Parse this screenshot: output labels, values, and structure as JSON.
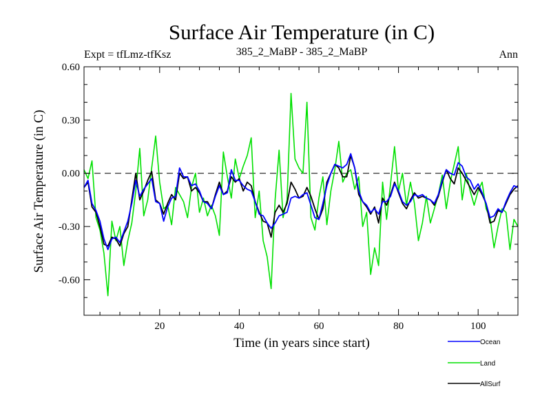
{
  "chart_data": {
    "type": "line",
    "title": "Surface Air Temperature (in C)",
    "subtitle_left": "Expt = tfLmz-tfKsz",
    "subtitle_center": "385_2_MaBP - 385_2_MaBP",
    "subtitle_right": "Ann",
    "xlabel": "Time (in years since start)",
    "ylabel": "Surface Air Temperature (in C)",
    "xlim": [
      1,
      110
    ],
    "ylim": [
      -0.8,
      0.6
    ],
    "xticks": [
      20,
      40,
      60,
      80,
      100
    ],
    "xtick_labels": [
      "20",
      "40",
      "60",
      "80",
      "100"
    ],
    "yticks": [
      0.6,
      0.3,
      0.0,
      -0.3,
      -0.6
    ],
    "ytick_labels": [
      "0.60",
      "0.30",
      "0.00",
      "-0.30",
      "-0.60"
    ],
    "zero_line": 0.0,
    "x": [
      1,
      2,
      3,
      4,
      5,
      6,
      7,
      8,
      9,
      10,
      11,
      12,
      13,
      14,
      15,
      16,
      17,
      18,
      19,
      20,
      21,
      22,
      23,
      24,
      25,
      26,
      27,
      28,
      29,
      30,
      31,
      32,
      33,
      34,
      35,
      36,
      37,
      38,
      39,
      40,
      41,
      42,
      43,
      44,
      45,
      46,
      47,
      48,
      49,
      50,
      51,
      52,
      53,
      54,
      55,
      56,
      57,
      58,
      59,
      60,
      61,
      62,
      63,
      64,
      65,
      66,
      67,
      68,
      69,
      70,
      71,
      72,
      73,
      74,
      75,
      76,
      77,
      78,
      79,
      80,
      81,
      82,
      83,
      84,
      85,
      86,
      87,
      88,
      89,
      90,
      91,
      92,
      93,
      94,
      95,
      96,
      97,
      98,
      99,
      100,
      101,
      102,
      103,
      104,
      105,
      106,
      107,
      108,
      109,
      110
    ],
    "series": [
      {
        "name": "Land",
        "color": "#00e000",
        "values": [
          0.02,
          -0.03,
          0.07,
          -0.25,
          -0.32,
          -0.45,
          -0.69,
          -0.27,
          -0.38,
          -0.3,
          -0.52,
          -0.38,
          -0.28,
          -0.1,
          0.14,
          -0.24,
          -0.15,
          0.03,
          0.21,
          -0.05,
          -0.2,
          -0.18,
          -0.29,
          -0.08,
          -0.12,
          -0.16,
          -0.25,
          -0.08,
          0.0,
          -0.22,
          -0.14,
          -0.24,
          -0.18,
          -0.24,
          -0.35,
          0.12,
          -0.02,
          -0.14,
          0.08,
          -0.03,
          0.04,
          0.1,
          0.2,
          -0.25,
          -0.1,
          -0.38,
          -0.47,
          -0.65,
          -0.15,
          0.13,
          -0.25,
          -0.15,
          0.45,
          0.08,
          0.03,
          0.0,
          0.4,
          -0.25,
          -0.32,
          -0.14,
          -0.02,
          -0.29,
          -0.1,
          0.02,
          0.18,
          -0.05,
          0.0,
          0.02,
          -0.09,
          -0.02,
          -0.3,
          -0.22,
          -0.57,
          -0.42,
          -0.52,
          -0.05,
          -0.26,
          -0.06,
          0.15,
          -0.1,
          0.0,
          -0.18,
          -0.05,
          -0.17,
          -0.38,
          -0.28,
          -0.13,
          -0.28,
          -0.2,
          -0.12,
          -0.01,
          -0.2,
          -0.05,
          0.05,
          0.15,
          -0.15,
          0.0,
          -0.1,
          -0.18,
          -0.1,
          -0.05,
          -0.2,
          -0.25,
          -0.42,
          -0.3,
          -0.2,
          -0.22,
          -0.43,
          -0.26,
          -0.3
        ]
      },
      {
        "name": "AllSurf",
        "color": "#000000",
        "values": [
          -0.08,
          -0.05,
          -0.19,
          -0.22,
          -0.3,
          -0.4,
          -0.41,
          -0.36,
          -0.37,
          -0.41,
          -0.34,
          -0.3,
          -0.15,
          0.0,
          -0.15,
          -0.1,
          -0.04,
          0.01,
          -0.15,
          -0.17,
          -0.23,
          -0.17,
          -0.12,
          -0.15,
          0.0,
          -0.03,
          -0.02,
          -0.1,
          -0.08,
          -0.11,
          -0.16,
          -0.16,
          -0.2,
          -0.12,
          -0.05,
          -0.12,
          -0.1,
          -0.02,
          -0.05,
          -0.03,
          -0.1,
          -0.05,
          -0.07,
          -0.16,
          -0.22,
          -0.27,
          -0.28,
          -0.36,
          -0.22,
          -0.18,
          -0.22,
          -0.17,
          -0.05,
          -0.09,
          -0.14,
          -0.13,
          -0.08,
          -0.13,
          -0.2,
          -0.26,
          -0.2,
          -0.05,
          0.0,
          0.05,
          0.03,
          -0.02,
          -0.02,
          0.1,
          0.03,
          -0.12,
          -0.16,
          -0.19,
          -0.23,
          -0.19,
          -0.28,
          -0.14,
          -0.18,
          -0.12,
          -0.05,
          -0.11,
          -0.17,
          -0.2,
          -0.15,
          -0.11,
          -0.14,
          -0.13,
          -0.14,
          -0.15,
          -0.18,
          -0.13,
          -0.05,
          0.02,
          -0.03,
          -0.06,
          0.03,
          0.0,
          -0.04,
          -0.08,
          -0.12,
          -0.08,
          -0.12,
          -0.17,
          -0.28,
          -0.27,
          -0.21,
          -0.22,
          -0.17,
          -0.12,
          -0.09,
          -0.07
        ]
      },
      {
        "name": "Ocean",
        "color": "#0000ff",
        "values": [
          -0.08,
          -0.04,
          -0.17,
          -0.21,
          -0.27,
          -0.37,
          -0.43,
          -0.37,
          -0.36,
          -0.39,
          -0.33,
          -0.27,
          -0.17,
          -0.04,
          -0.13,
          -0.09,
          -0.06,
          -0.03,
          -0.16,
          -0.17,
          -0.27,
          -0.19,
          -0.14,
          -0.13,
          0.03,
          -0.02,
          -0.02,
          -0.07,
          -0.06,
          -0.1,
          -0.16,
          -0.17,
          -0.2,
          -0.13,
          -0.07,
          -0.12,
          -0.11,
          0.02,
          -0.04,
          -0.04,
          -0.07,
          -0.09,
          -0.1,
          -0.16,
          -0.23,
          -0.24,
          -0.28,
          -0.31,
          -0.28,
          -0.24,
          -0.23,
          -0.22,
          -0.14,
          -0.13,
          -0.14,
          -0.12,
          -0.11,
          -0.18,
          -0.25,
          -0.26,
          -0.17,
          -0.07,
          0.0,
          0.05,
          0.04,
          0.03,
          0.05,
          0.11,
          0.03,
          -0.1,
          -0.16,
          -0.18,
          -0.22,
          -0.2,
          -0.23,
          -0.16,
          -0.16,
          -0.13,
          -0.06,
          -0.1,
          -0.16,
          -0.18,
          -0.16,
          -0.12,
          -0.13,
          -0.12,
          -0.14,
          -0.15,
          -0.17,
          -0.12,
          -0.04,
          0.02,
          0.0,
          -0.01,
          0.06,
          0.04,
          -0.02,
          -0.04,
          -0.09,
          -0.06,
          -0.11,
          -0.17,
          -0.25,
          -0.24,
          -0.2,
          -0.22,
          -0.16,
          -0.11,
          -0.07,
          -0.08
        ]
      }
    ],
    "legend": {
      "placement": "bottom-right",
      "entries": [
        {
          "label": "Ocean",
          "color": "#0000ff"
        },
        {
          "label": "Land",
          "color": "#00e000"
        },
        {
          "label": "AllSurf",
          "color": "#000000"
        }
      ]
    }
  }
}
